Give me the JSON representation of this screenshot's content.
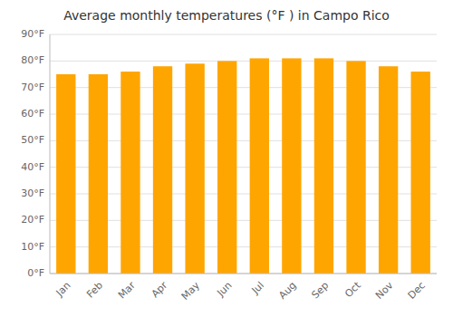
{
  "chart_data": {
    "type": "bar",
    "title": "Average monthly temperatures (°F ) in Campo Rico",
    "categories": [
      "Jan",
      "Feb",
      "Mar",
      "Apr",
      "May",
      "Jun",
      "Jul",
      "Aug",
      "Sep",
      "Oct",
      "Nov",
      "Dec"
    ],
    "values": [
      75,
      75,
      76,
      78,
      79,
      80,
      81,
      81,
      81,
      80,
      78,
      76
    ],
    "color": "#FFA500",
    "ylim": [
      0,
      90
    ],
    "yticks": [
      {
        "value": 0,
        "label": "0°F"
      },
      {
        "value": 10,
        "label": "10°F"
      },
      {
        "value": 20,
        "label": "20°F"
      },
      {
        "value": 30,
        "label": "30°F"
      },
      {
        "value": 40,
        "label": "40°F"
      },
      {
        "value": 50,
        "label": "50°F"
      },
      {
        "value": 60,
        "label": "60°F"
      },
      {
        "value": 70,
        "label": "70°F"
      },
      {
        "value": 80,
        "label": "80°F"
      },
      {
        "value": 90,
        "label": "90°F"
      }
    ],
    "grid": true
  }
}
